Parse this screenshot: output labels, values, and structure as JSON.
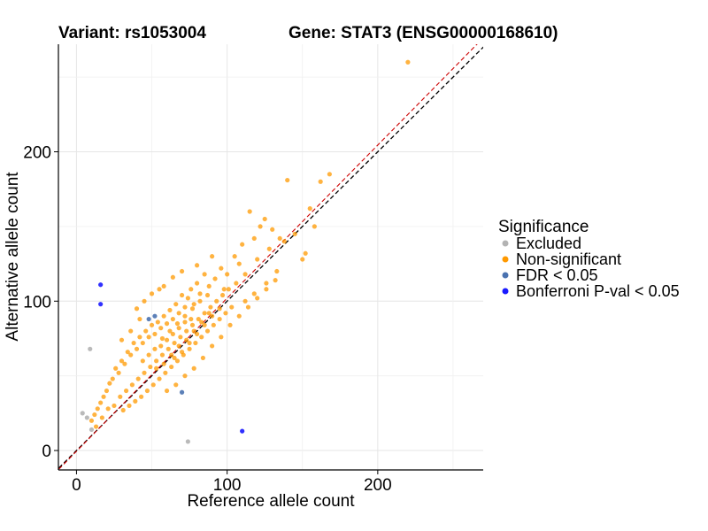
{
  "chart_data": {
    "type": "scatter",
    "title_left": "Variant: rs1053004",
    "title_right": "Gene: STAT3 (ENSG00000168610)",
    "xlabel": "Reference allele count",
    "ylabel": "Alternative allele count",
    "xlim": [
      -12,
      270
    ],
    "ylim": [
      -13,
      272
    ],
    "xticks": [
      0,
      100,
      200
    ],
    "yticks": [
      0,
      100,
      200
    ],
    "grid": true,
    "reference_lines": [
      "y = x (black dashed)",
      "fitted ratio line (red dashed)"
    ],
    "legend": {
      "title": "Significance",
      "position": "right",
      "entries": [
        {
          "label": "Excluded",
          "color": "#b3b3b3"
        },
        {
          "label": "Non-significant",
          "color": "#ff9900"
        },
        {
          "label": "FDR < 0.05",
          "color": "#4a72b0"
        },
        {
          "label": "Bonferroni P-val < 0.05",
          "color": "#1a1aff"
        }
      ]
    },
    "series": [
      {
        "name": "Excluded",
        "color": "#b3b3b3",
        "points": [
          [
            4,
            25
          ],
          [
            7,
            22
          ],
          [
            9,
            68
          ],
          [
            10,
            14
          ],
          [
            74,
            6
          ]
        ]
      },
      {
        "name": "FDR < 0.05",
        "color": "#4a72b0",
        "points": [
          [
            48,
            88
          ],
          [
            52,
            90
          ],
          [
            70,
            39
          ]
        ]
      },
      {
        "name": "Bonferroni P-val < 0.05",
        "color": "#1a1aff",
        "points": [
          [
            16,
            111
          ],
          [
            16,
            98
          ],
          [
            110,
            13
          ]
        ]
      },
      {
        "name": "Non-significant",
        "color": "#ff9900",
        "points": [
          [
            220,
            260
          ],
          [
            168,
            185
          ],
          [
            162,
            180
          ],
          [
            155,
            162
          ],
          [
            140,
            181
          ],
          [
            158,
            150
          ],
          [
            150,
            128
          ],
          [
            152,
            132
          ],
          [
            145,
            145
          ],
          [
            135,
            142
          ],
          [
            130,
            148
          ],
          [
            125,
            155
          ],
          [
            122,
            150
          ],
          [
            118,
            142
          ],
          [
            115,
            160
          ],
          [
            110,
            138
          ],
          [
            108,
            125
          ],
          [
            105,
            130
          ],
          [
            112,
            118
          ],
          [
            120,
            128
          ],
          [
            128,
            135
          ],
          [
            138,
            140
          ],
          [
            133,
            120
          ],
          [
            126,
            112
          ],
          [
            118,
            105
          ],
          [
            112,
            100
          ],
          [
            106,
            112
          ],
          [
            100,
            118
          ],
          [
            98,
            108
          ],
          [
            96,
            122
          ],
          [
            92,
            115
          ],
          [
            88,
            110
          ],
          [
            85,
            118
          ],
          [
            82,
            105
          ],
          [
            80,
            112
          ],
          [
            78,
            98
          ],
          [
            76,
            108
          ],
          [
            74,
            102
          ],
          [
            72,
            96
          ],
          [
            70,
            104
          ],
          [
            68,
            92
          ],
          [
            66,
            98
          ],
          [
            64,
            88
          ],
          [
            62,
            94
          ],
          [
            60,
            85
          ],
          [
            58,
            90
          ],
          [
            56,
            82
          ],
          [
            54,
            86
          ],
          [
            52,
            78
          ],
          [
            50,
            84
          ],
          [
            48,
            76
          ],
          [
            46,
            80
          ],
          [
            44,
            72
          ],
          [
            42,
            76
          ],
          [
            40,
            68
          ],
          [
            38,
            72
          ],
          [
            36,
            64
          ],
          [
            34,
            66
          ],
          [
            32,
            58
          ],
          [
            30,
            60
          ],
          [
            28,
            52
          ],
          [
            26,
            55
          ],
          [
            24,
            48
          ],
          [
            22,
            45
          ],
          [
            20,
            40
          ],
          [
            18,
            36
          ],
          [
            16,
            32
          ],
          [
            14,
            28
          ],
          [
            12,
            24
          ],
          [
            10,
            20
          ],
          [
            13,
            16
          ],
          [
            17,
            22
          ],
          [
            21,
            28
          ],
          [
            25,
            30
          ],
          [
            29,
            36
          ],
          [
            33,
            40
          ],
          [
            37,
            44
          ],
          [
            41,
            48
          ],
          [
            45,
            52
          ],
          [
            49,
            56
          ],
          [
            53,
            60
          ],
          [
            57,
            64
          ],
          [
            61,
            68
          ],
          [
            65,
            72
          ],
          [
            69,
            76
          ],
          [
            73,
            80
          ],
          [
            77,
            84
          ],
          [
            81,
            88
          ],
          [
            85,
            92
          ],
          [
            89,
            96
          ],
          [
            93,
            100
          ],
          [
            97,
            104
          ],
          [
            101,
            108
          ],
          [
            103,
            96
          ],
          [
            99,
            92
          ],
          [
            95,
            88
          ],
          [
            91,
            84
          ],
          [
            87,
            80
          ],
          [
            83,
            76
          ],
          [
            79,
            72
          ],
          [
            75,
            68
          ],
          [
            71,
            64
          ],
          [
            67,
            60
          ],
          [
            63,
            56
          ],
          [
            59,
            52
          ],
          [
            55,
            48
          ],
          [
            51,
            44
          ],
          [
            47,
            40
          ],
          [
            43,
            36
          ],
          [
            39,
            33
          ],
          [
            35,
            30
          ],
          [
            31,
            27
          ],
          [
            60,
            40
          ],
          [
            66,
            44
          ],
          [
            72,
            50
          ],
          [
            78,
            55
          ],
          [
            84,
            62
          ],
          [
            90,
            70
          ],
          [
            96,
            76
          ],
          [
            102,
            84
          ],
          [
            108,
            90
          ],
          [
            114,
            96
          ],
          [
            120,
            102
          ],
          [
            126,
            108
          ],
          [
            132,
            114
          ],
          [
            40,
            95
          ],
          [
            45,
            100
          ],
          [
            50,
            105
          ],
          [
            55,
            108
          ],
          [
            42,
            88
          ],
          [
            36,
            80
          ],
          [
            30,
            74
          ],
          [
            58,
            110
          ],
          [
            64,
            116
          ],
          [
            70,
            120
          ],
          [
            80,
            124
          ],
          [
            90,
            130
          ],
          [
            57,
            75
          ],
          [
            62,
            80
          ],
          [
            67,
            85
          ],
          [
            72,
            90
          ],
          [
            77,
            95
          ],
          [
            82,
            100
          ],
          [
            87,
            104
          ],
          [
            65,
            62
          ],
          [
            70,
            66
          ],
          [
            75,
            72
          ],
          [
            80,
            78
          ],
          [
            85,
            84
          ],
          [
            90,
            90
          ],
          [
            95,
            95
          ],
          [
            44,
            60
          ],
          [
            48,
            64
          ],
          [
            52,
            68
          ],
          [
            56,
            70
          ],
          [
            60,
            74
          ],
          [
            64,
            78
          ],
          [
            68,
            82
          ],
          [
            72,
            86
          ],
          [
            76,
            88
          ],
          [
            53,
            55
          ],
          [
            58,
            58
          ],
          [
            63,
            64
          ],
          [
            68,
            70
          ],
          [
            73,
            74
          ],
          [
            78,
            80
          ],
          [
            83,
            86
          ],
          [
            88,
            92
          ]
        ]
      }
    ]
  }
}
